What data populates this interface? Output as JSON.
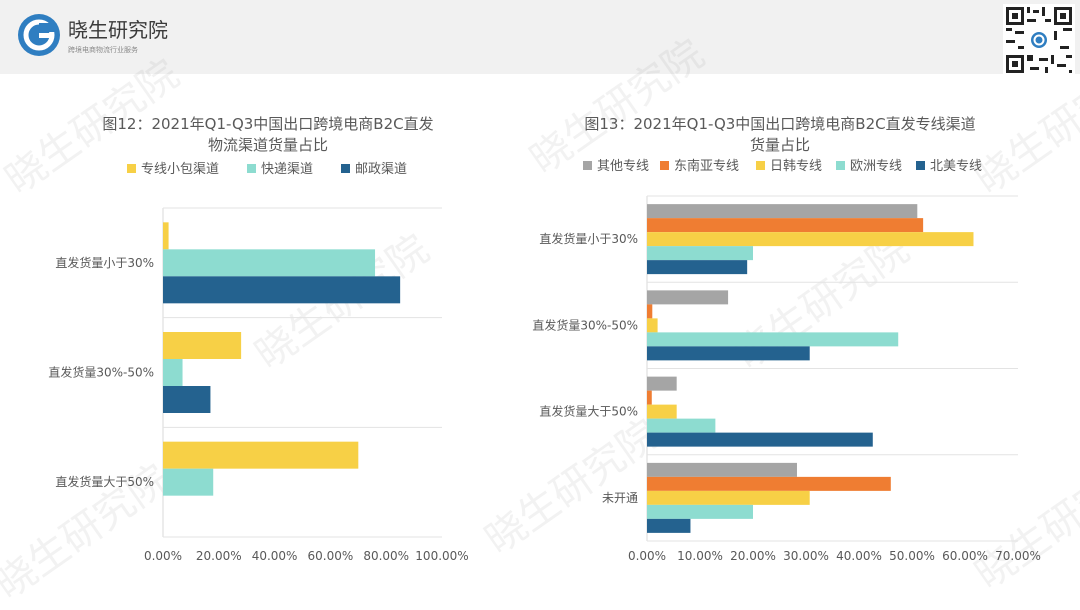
{
  "brand": {
    "name": "晓生研究院",
    "tagline": "跨境电商物流行业服务",
    "colors": {
      "accent": "#2f7ec1"
    }
  },
  "watermark_text": "晓生研究院",
  "chart_data": [
    {
      "id": "fig12",
      "type": "bar",
      "orientation": "horizontal",
      "title_lines": [
        "图12：2021年Q1-Q3中国出口跨境电商B2C直发",
        "物流渠道货量占比"
      ],
      "categories": [
        "直发货量小于30%",
        "直发货量30%-50%",
        "直发货量大于50%"
      ],
      "series": [
        {
          "name": "专线小包渠道",
          "color": "#f7d046",
          "values": [
            0.02,
            0.28,
            0.7
          ]
        },
        {
          "name": "快递渠道",
          "color": "#8ddcd0",
          "values": [
            0.76,
            0.07,
            0.18
          ]
        },
        {
          "name": "邮政渠道",
          "color": "#24628f",
          "values": [
            0.85,
            0.17,
            0
          ]
        }
      ],
      "xlim": [
        0,
        1.0
      ],
      "xticks": [
        "0.00%",
        "20.00%",
        "40.00%",
        "60.00%",
        "80.00%",
        "100.00%"
      ],
      "grid": true,
      "legend_position": "top"
    },
    {
      "id": "fig13",
      "type": "bar",
      "orientation": "horizontal",
      "title_lines": [
        "图13：2021年Q1-Q3中国出口跨境电商B2C直发专线渠道",
        "货量占比"
      ],
      "categories": [
        "直发货量小于30%",
        "直发货量30%-50%",
        "直发货量大于50%",
        "未开通"
      ],
      "series": [
        {
          "name": "其他专线",
          "color": "#a5a5a5",
          "values": [
            0.51,
            0.153,
            0.056,
            0.283
          ]
        },
        {
          "name": "东南亚专线",
          "color": "#ef7d32",
          "values": [
            0.521,
            0.01,
            0.009,
            0.46
          ]
        },
        {
          "name": "日韩专线",
          "color": "#f7d046",
          "values": [
            0.616,
            0.02,
            0.056,
            0.307
          ]
        },
        {
          "name": "欧洲专线",
          "color": "#8ddcd0",
          "values": [
            0.2,
            0.474,
            0.129,
            0.2
          ]
        },
        {
          "name": "北美专线",
          "color": "#24628f",
          "values": [
            0.189,
            0.307,
            0.426,
            0.082
          ]
        }
      ],
      "xlim": [
        0,
        0.7
      ],
      "xticks": [
        "0.00%",
        "10.00%",
        "20.00%",
        "30.00%",
        "40.00%",
        "50.00%",
        "60.00%",
        "70.00%"
      ],
      "grid": true,
      "legend_position": "top"
    }
  ]
}
